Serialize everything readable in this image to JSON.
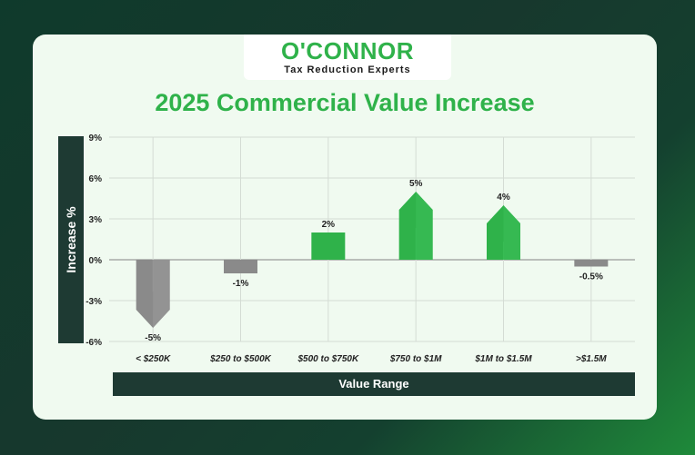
{
  "logo": {
    "brand": "O'CONNOR",
    "tagline": "Tax Reduction Experts"
  },
  "chart_data": {
    "type": "bar",
    "title": "2025 Commercial Value Increase",
    "xlabel": "Value Range",
    "ylabel": "Increase %",
    "categories": [
      "< $250K",
      "$250 to $500K",
      "$500 to $750K",
      "$750 to $1M",
      "$1M to $1.5M",
      ">$1.5M"
    ],
    "values": [
      -5,
      -1,
      2,
      5,
      4,
      -0.5
    ],
    "data_labels": [
      "-5%",
      "-1%",
      "2%",
      "5%",
      "4%",
      "-0.5%"
    ],
    "ylim": [
      -6,
      9
    ],
    "yticks": [
      9,
      6,
      3,
      0,
      -3,
      -6
    ],
    "ytick_labels": [
      "9%",
      "6%",
      "3%",
      "0%",
      "-3%",
      "-6%"
    ],
    "grid": true,
    "colors": {
      "positive": "#2fb24a",
      "positive_light": "#3cc05a",
      "negative": "#8a8a8a",
      "negative_light": "#9b9b9b"
    }
  }
}
